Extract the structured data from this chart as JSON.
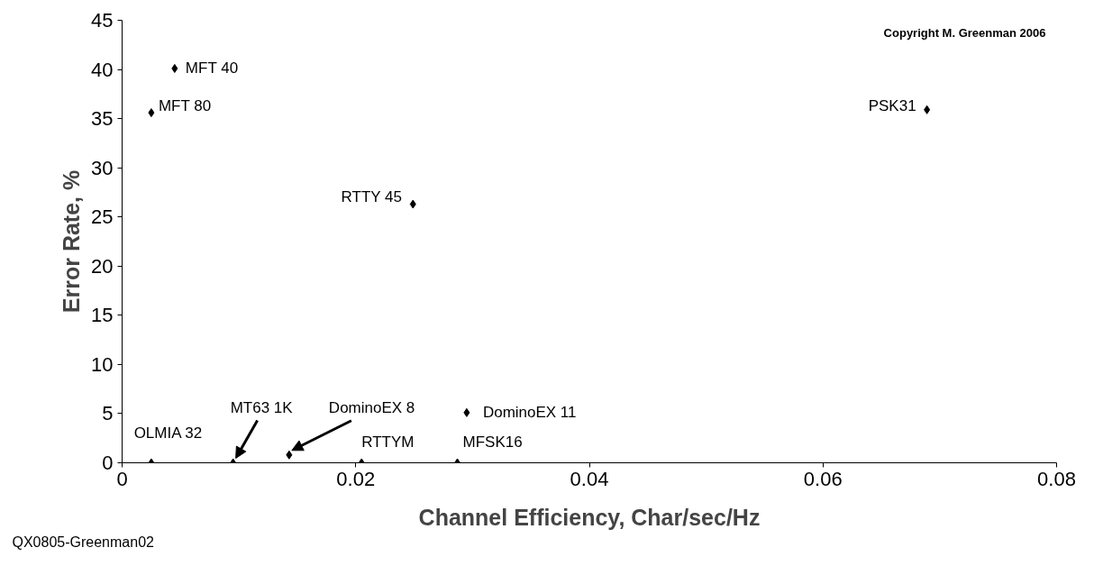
{
  "chart_data": {
    "type": "scatter",
    "xlabel": "Channel Efficiency, Char/sec/Hz",
    "ylabel": "Error Rate, %",
    "x": [
      0.0045,
      0.0025,
      0.0689,
      0.0249,
      0.0295,
      0.0143,
      0.0095,
      0.0025,
      0.0205,
      0.0287
    ],
    "series": [
      {
        "color": "#000000",
        "values": [
          40.1,
          35.6,
          35.9,
          26.3,
          5.1,
          0.8,
          0,
          0,
          0,
          0
        ]
      }
    ],
    "marker": "diamond",
    "grid": false,
    "xlim": [
      0,
      0.08
    ],
    "xticks": [
      0,
      0.02,
      0.04,
      0.06,
      0.08
    ],
    "ylim": [
      0,
      45
    ],
    "yticks": [
      0,
      5,
      10,
      15,
      20,
      25,
      30,
      35,
      40,
      45
    ],
    "annotations": [
      {
        "text": "MFT 40",
        "x": 0.0045,
        "y": 40.1
      },
      {
        "text": "MFT 80",
        "x": 0.0025,
        "y": 35.6
      },
      {
        "text": "PSK31",
        "x": 0.0689,
        "y": 35.9
      },
      {
        "text": "RTTY 45",
        "x": 0.0249,
        "y": 26.3
      },
      {
        "text": "DominoEX 11",
        "x": 0.0295,
        "y": 5.1
      },
      {
        "text": "DominoEX 8",
        "x": 0.0143,
        "y": 0.8
      },
      {
        "text": "MT63 1K",
        "x": 0.0095,
        "y": 0
      },
      {
        "text": "OLMIA 32",
        "x": 0.0025,
        "y": 0
      },
      {
        "text": "RTTYM",
        "x": 0.0205,
        "y": 0
      },
      {
        "text": "MFSK16",
        "x": 0.0287,
        "y": 0
      },
      "Copyright M. Greenman 2006",
      "QX0805-Greenman02"
    ]
  }
}
